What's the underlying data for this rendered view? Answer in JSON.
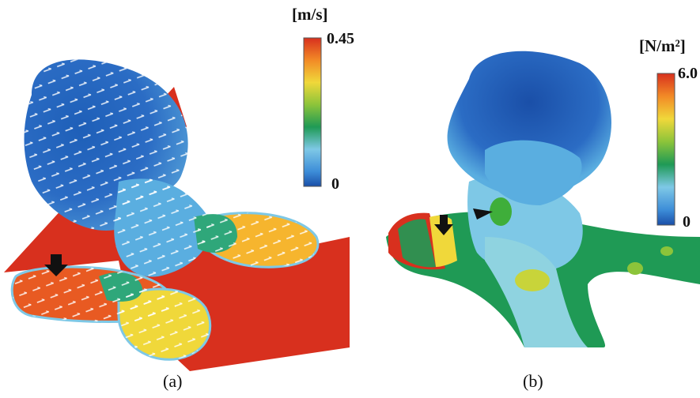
{
  "panel_a": {
    "unit_label": "[m/s]",
    "max_label": "0.45",
    "min_label": "0",
    "caption": "(a)"
  },
  "panel_b": {
    "unit_label": "[N/m²]",
    "max_label": "6.0",
    "min_label": "0",
    "caption": "(b)"
  },
  "colorscale": [
    "#1a4fa8",
    "#2b6cc4",
    "#3d8dd8",
    "#5aaee0",
    "#7ec8e6",
    "#8fd3e0",
    "#5cc0b0",
    "#2fa77a",
    "#1f9a55",
    "#3fae3a",
    "#8cc43a",
    "#c8d43a",
    "#f0d83a",
    "#f6b52e",
    "#f28a26",
    "#e85a22",
    "#d8301e"
  ]
}
